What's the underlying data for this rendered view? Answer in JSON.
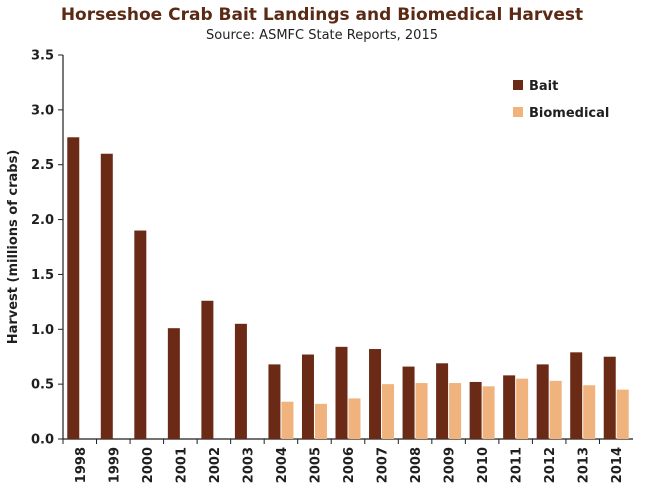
{
  "chart_data": {
    "type": "bar",
    "title": "Horseshoe Crab Bait Landings and Biomedical Harvest",
    "subtitle": "Source: ASMFC State Reports, 2015",
    "xlabel": "",
    "ylabel": "Harvest (millions of crabs)",
    "ylim": [
      0,
      3.5
    ],
    "yticks": [
      "0.0",
      "0.5",
      "1.0",
      "1.5",
      "2.0",
      "2.5",
      "3.0",
      "3.5"
    ],
    "ytick_values": [
      0,
      0.5,
      1.0,
      1.5,
      2.0,
      2.5,
      3.0,
      3.5
    ],
    "categories": [
      "1998",
      "1999",
      "2000",
      "2001",
      "2002",
      "2003",
      "2004",
      "2005",
      "2006",
      "2007",
      "2008",
      "2009",
      "2010",
      "2011",
      "2012",
      "2013",
      "2014"
    ],
    "series": [
      {
        "name": "Bait",
        "color": "#6b2a16",
        "values": [
          2.75,
          2.6,
          1.9,
          1.01,
          1.26,
          1.05,
          0.68,
          0.77,
          0.84,
          0.82,
          0.66,
          0.69,
          0.52,
          0.58,
          0.68,
          0.79,
          0.75
        ]
      },
      {
        "name": "Biomedical",
        "color": "#f0b37e",
        "values": [
          null,
          null,
          null,
          null,
          null,
          null,
          0.34,
          0.32,
          0.37,
          0.5,
          0.51,
          0.51,
          0.48,
          0.55,
          0.53,
          0.49,
          0.45
        ]
      }
    ],
    "grid": false,
    "legend": "top-right"
  }
}
